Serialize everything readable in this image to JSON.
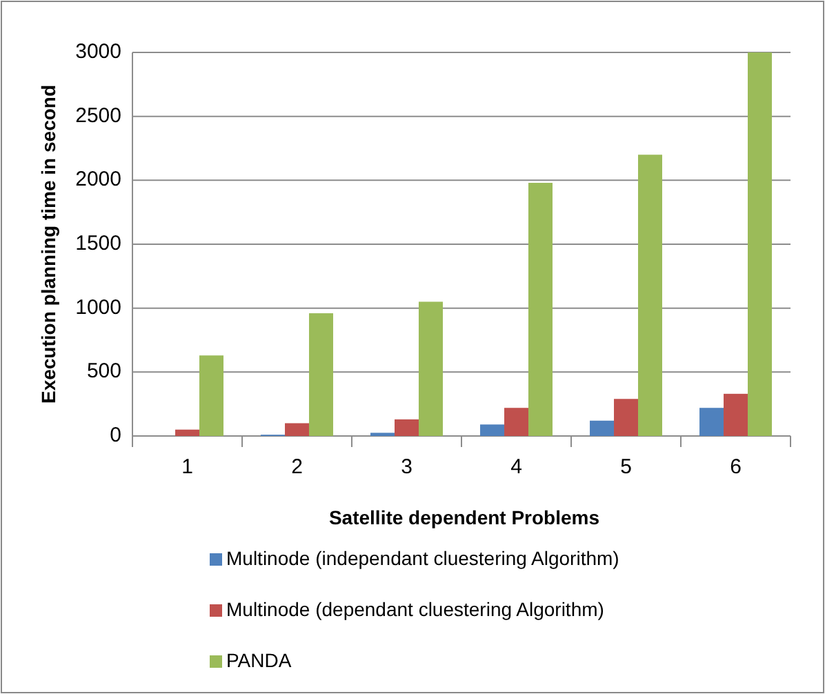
{
  "chart_data": {
    "type": "bar",
    "xlabel": "Satellite dependent Problems",
    "ylabel": "Execution planning time in second",
    "categories": [
      "1",
      "2",
      "3",
      "4",
      "5",
      "6"
    ],
    "series": [
      {
        "name": "Multinode (independant cluestering Algorithm)",
        "color": "#4f81bd",
        "values": [
          0,
          10,
          25,
          90,
          120,
          220
        ]
      },
      {
        "name": "Multinode (dependant cluestering Algorithm)",
        "color": "#c0504d",
        "values": [
          50,
          100,
          130,
          220,
          290,
          330
        ]
      },
      {
        "name": "PANDA",
        "color": "#9bbb59",
        "values": [
          630,
          960,
          1050,
          1980,
          2200,
          3000
        ]
      }
    ],
    "ylim": [
      0,
      3000
    ],
    "yticks": [
      0,
      500,
      1000,
      1500,
      2000,
      2500,
      3000
    ],
    "grid": "y",
    "legend": "bottom"
  }
}
